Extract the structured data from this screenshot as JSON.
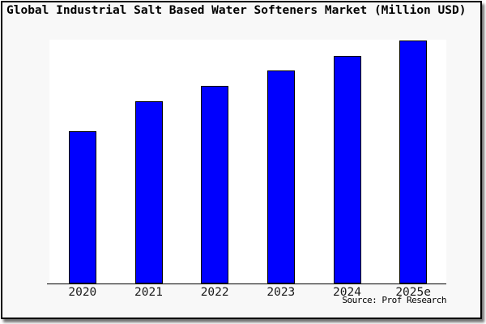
{
  "chart_data": {
    "type": "bar",
    "title": "Global Industrial Salt Based Water Softeners Market (Million USD)",
    "categories": [
      "2020",
      "2021",
      "2022",
      "2023",
      "2024",
      "2025e"
    ],
    "values": [
      62.7,
      75.0,
      81.3,
      87.7,
      93.7,
      100.0
    ],
    "values_note": "y-axis has no ticks or gridlines; values estimated as percent of tallest bar height",
    "xlabel": "",
    "ylabel": "",
    "ylim": [
      0,
      100
    ],
    "grid": false,
    "legend": false,
    "bar_color": "#0000fe",
    "bar_edge_color": "#000000"
  },
  "source_note": "Source: Prof Research",
  "colors": {
    "figure_background": "#f8f8f8",
    "plot_background": "#ffffff",
    "frame_border": "#000000",
    "axis": "#000000",
    "title_text": "#000000",
    "tick_text": "#1a1a1a"
  }
}
